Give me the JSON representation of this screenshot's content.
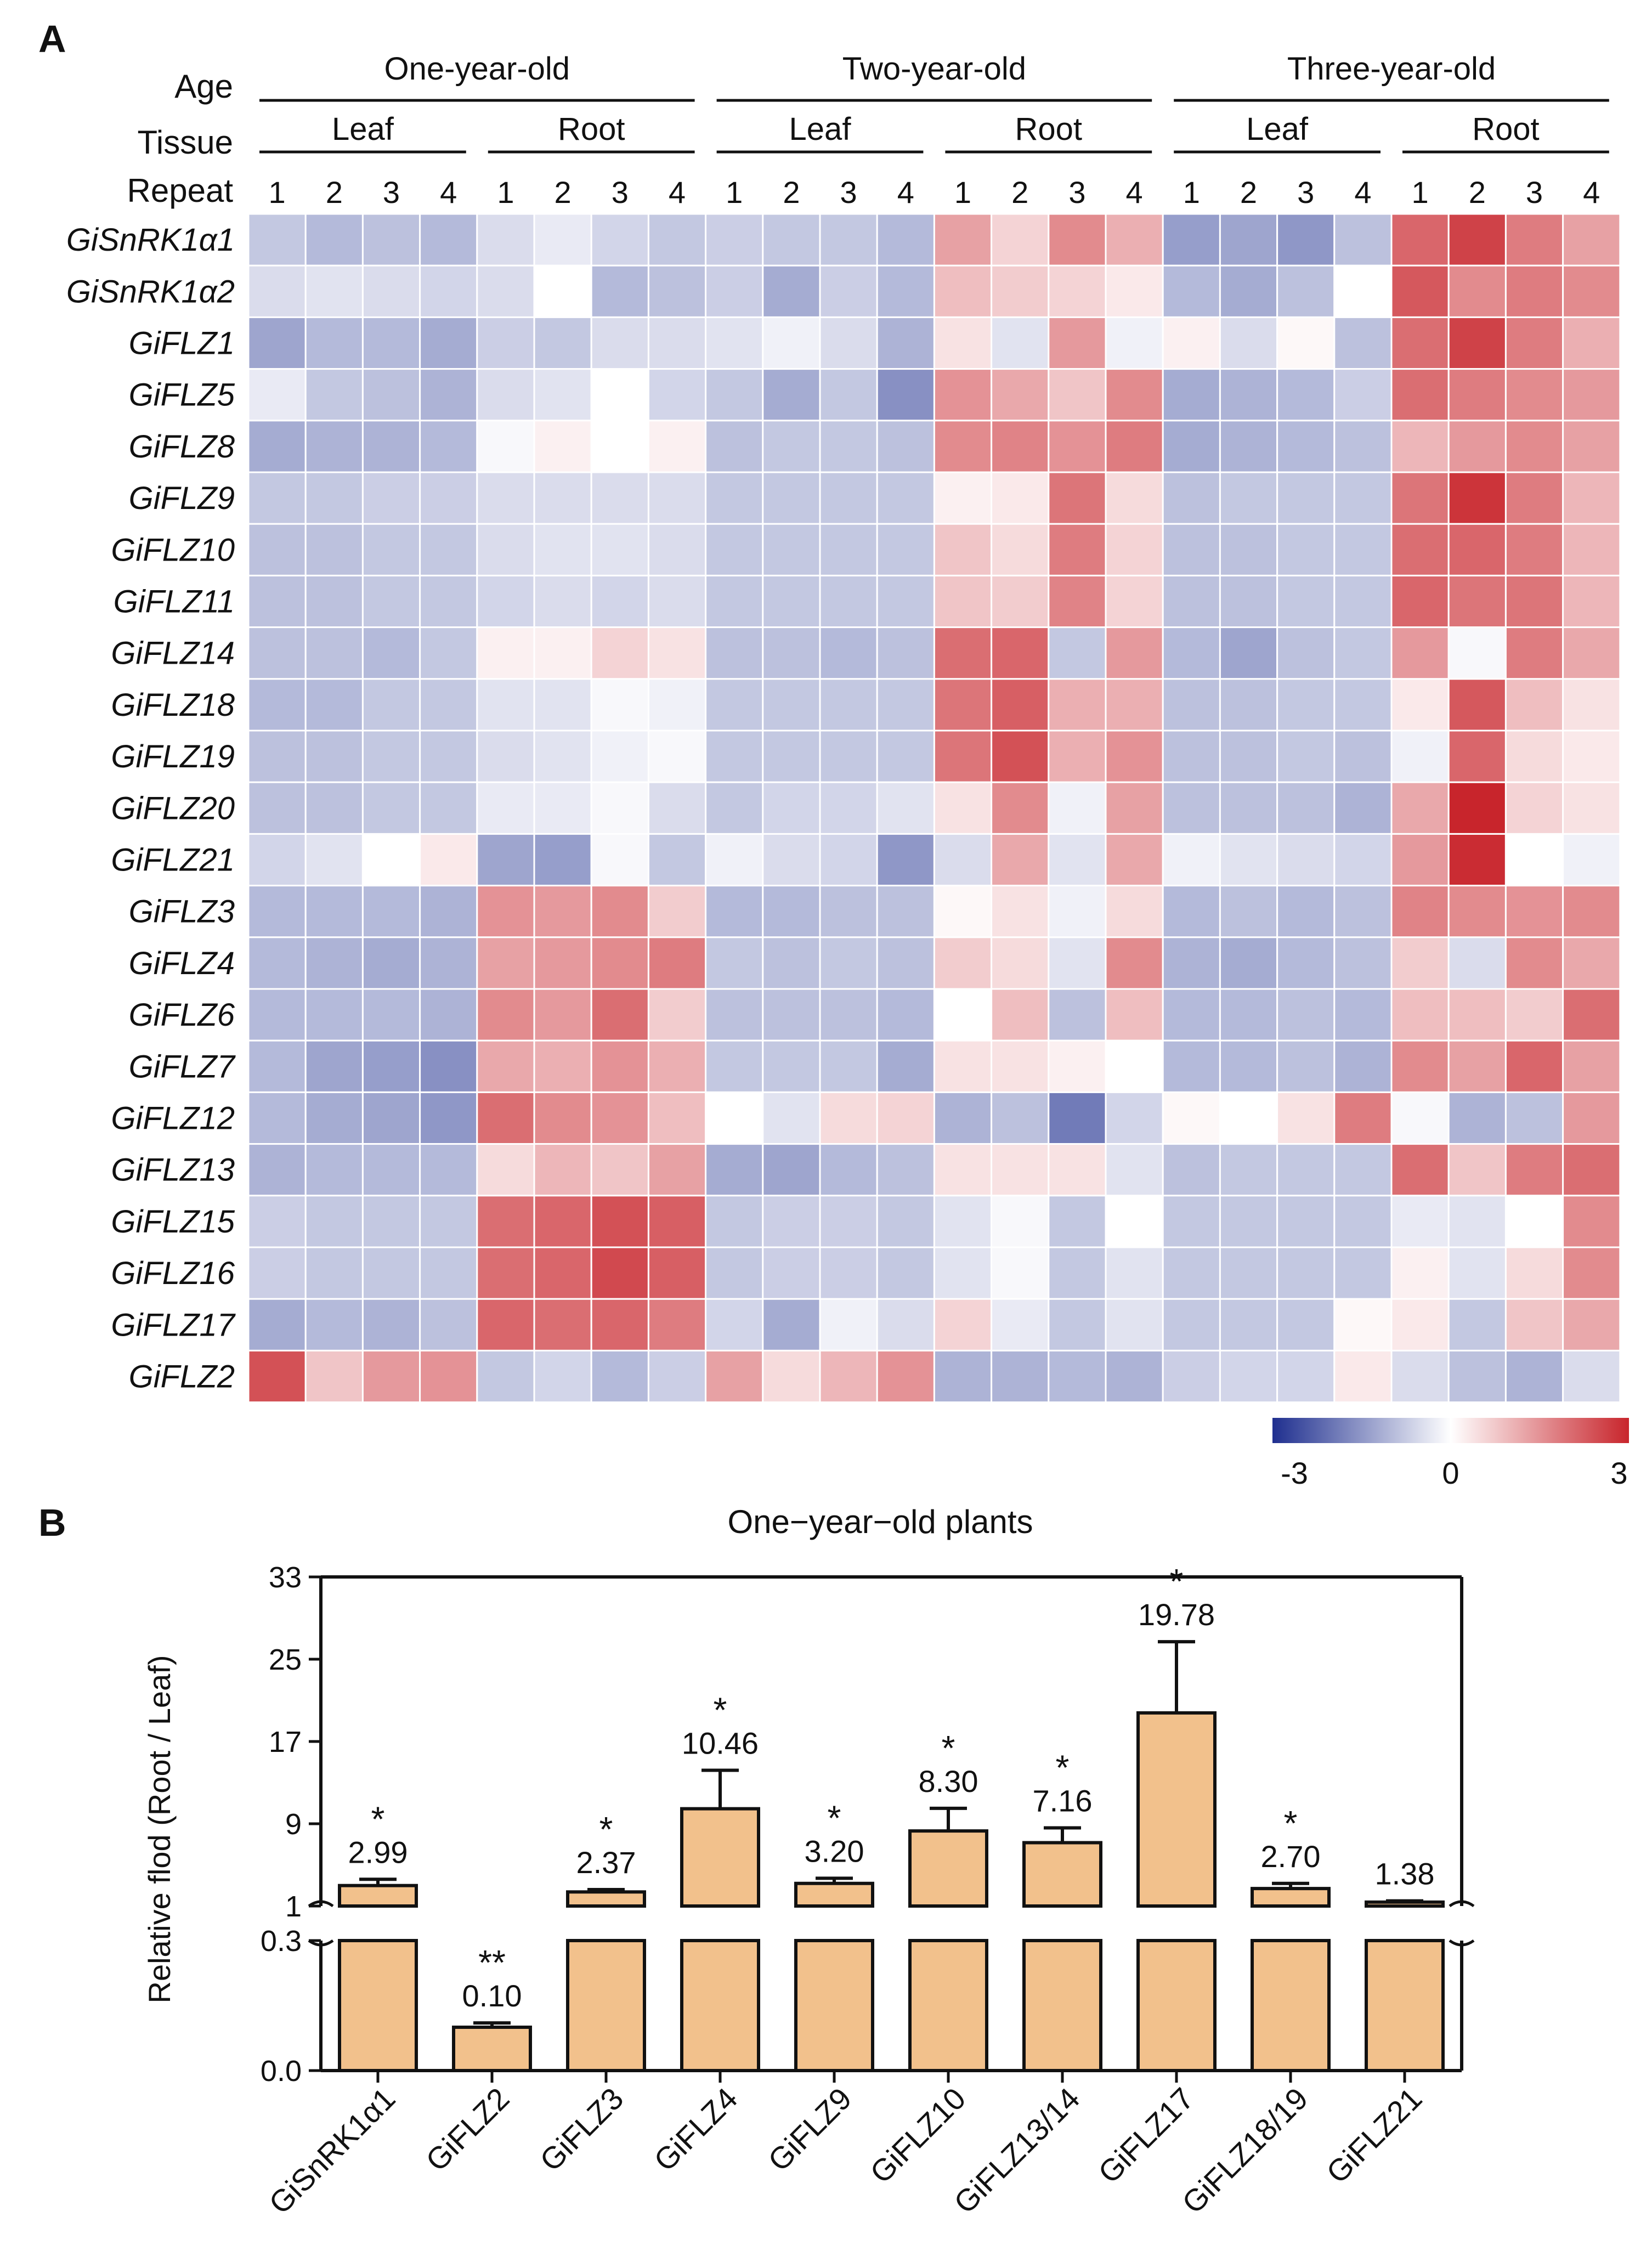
{
  "panel_a_letter": "A",
  "panel_b_letter": "B",
  "heatmap": {
    "row_header_age": "Age",
    "row_header_tissue": "Tissue",
    "row_header_repeat": "Repeat",
    "ages": [
      "One-year-old",
      "Two-year-old",
      "Three-year-old"
    ],
    "tissues": [
      "Leaf",
      "Root",
      "Leaf",
      "Root",
      "Leaf",
      "Root"
    ],
    "repeats": [
      "1",
      "2",
      "3",
      "4",
      "1",
      "2",
      "3",
      "4",
      "1",
      "2",
      "3",
      "4",
      "1",
      "2",
      "3",
      "4",
      "1",
      "2",
      "3",
      "4",
      "1",
      "2",
      "3",
      "4"
    ],
    "genes": [
      "GiSnRK1α1",
      "GiSnRK1α2",
      "GiFLZ1",
      "GiFLZ5",
      "GiFLZ8",
      "GiFLZ9",
      "GiFLZ10",
      "GiFLZ11",
      "GiFLZ14",
      "GiFLZ18",
      "GiFLZ19",
      "GiFLZ20",
      "GiFLZ21",
      "GiFLZ3",
      "GiFLZ4",
      "GiFLZ6",
      "GiFLZ7",
      "GiFLZ12",
      "GiFLZ13",
      "GiFLZ15",
      "GiFLZ16",
      "GiFLZ17",
      "GiFLZ2"
    ],
    "values": [
      [
        -0.8,
        -1.0,
        -0.9,
        -1.0,
        -0.5,
        -0.3,
        -0.6,
        -0.8,
        -0.7,
        -0.8,
        -0.8,
        -1.0,
        1.3,
        0.6,
        1.6,
        1.1,
        -1.4,
        -1.3,
        -1.5,
        -0.9,
        2.1,
        2.6,
        1.8,
        1.3
      ],
      [
        -0.5,
        -0.4,
        -0.5,
        -0.6,
        -0.5,
        0.0,
        -1.0,
        -0.9,
        -0.7,
        -1.2,
        -0.7,
        -1.0,
        0.9,
        0.7,
        0.6,
        0.3,
        -1.0,
        -1.2,
        -0.9,
        0.0,
        2.3,
        1.6,
        1.8,
        1.6
      ],
      [
        -1.3,
        -1.0,
        -1.0,
        -1.2,
        -0.7,
        -0.8,
        -0.5,
        -0.5,
        -0.4,
        -0.2,
        -0.5,
        -1.1,
        0.4,
        -0.4,
        1.4,
        -0.2,
        0.2,
        -0.5,
        0.1,
        -0.9,
        2.0,
        2.6,
        1.8,
        1.1
      ],
      [
        -0.3,
        -0.8,
        -0.9,
        -1.1,
        -0.5,
        -0.4,
        0.0,
        -0.6,
        -0.8,
        -1.2,
        -0.8,
        -1.6,
        1.5,
        1.2,
        0.8,
        1.6,
        -1.2,
        -1.1,
        -1.0,
        -0.7,
        2.0,
        1.8,
        1.6,
        1.4
      ],
      [
        -1.2,
        -1.1,
        -1.1,
        -1.0,
        -0.1,
        0.2,
        0.0,
        0.2,
        -0.9,
        -0.8,
        -0.8,
        -0.9,
        1.6,
        1.7,
        1.5,
        1.8,
        -1.2,
        -1.1,
        -1.0,
        -0.9,
        1.0,
        1.4,
        1.6,
        1.3
      ],
      [
        -0.8,
        -0.8,
        -0.7,
        -0.7,
        -0.5,
        -0.5,
        -0.5,
        -0.5,
        -0.8,
        -0.8,
        -0.8,
        -0.8,
        0.2,
        0.3,
        1.9,
        0.5,
        -0.9,
        -0.8,
        -0.8,
        -0.8,
        1.9,
        2.8,
        1.8,
        1.0
      ],
      [
        -0.9,
        -0.9,
        -0.8,
        -0.8,
        -0.5,
        -0.4,
        -0.4,
        -0.5,
        -0.8,
        -0.8,
        -0.8,
        -0.8,
        0.8,
        0.5,
        1.8,
        0.6,
        -0.9,
        -0.9,
        -0.8,
        -0.8,
        2.0,
        2.1,
        1.8,
        1.0
      ],
      [
        -0.9,
        -0.9,
        -0.8,
        -0.8,
        -0.6,
        -0.5,
        -0.6,
        -0.5,
        -0.8,
        -0.8,
        -0.8,
        -0.8,
        0.8,
        0.7,
        1.7,
        0.6,
        -0.9,
        -0.9,
        -0.8,
        -0.8,
        2.1,
        1.9,
        1.9,
        1.0
      ],
      [
        -0.9,
        -0.9,
        -1.0,
        -0.8,
        0.2,
        0.2,
        0.6,
        0.4,
        -0.9,
        -0.9,
        -1.0,
        -0.9,
        2.0,
        2.1,
        -0.8,
        1.4,
        -1.0,
        -1.3,
        -0.9,
        -0.8,
        1.4,
        -0.1,
        1.8,
        1.2
      ],
      [
        -1.0,
        -1.0,
        -0.8,
        -0.8,
        -0.4,
        -0.4,
        -0.1,
        -0.2,
        -0.8,
        -0.8,
        -0.8,
        -0.8,
        1.9,
        2.2,
        1.1,
        1.1,
        -0.9,
        -0.9,
        -0.8,
        -0.8,
        0.3,
        2.3,
        0.9,
        0.4
      ],
      [
        -0.9,
        -0.9,
        -0.8,
        -0.8,
        -0.5,
        -0.4,
        -0.2,
        -0.1,
        -0.8,
        -0.8,
        -0.8,
        -0.8,
        1.9,
        2.4,
        1.1,
        1.5,
        -0.9,
        -0.9,
        -0.8,
        -0.9,
        -0.2,
        2.1,
        0.5,
        0.3
      ],
      [
        -0.9,
        -0.9,
        -0.8,
        -0.8,
        -0.3,
        -0.3,
        -0.1,
        -0.5,
        -0.8,
        -0.6,
        -0.6,
        -0.4,
        0.4,
        1.6,
        -0.2,
        1.3,
        -0.9,
        -0.9,
        -0.9,
        -1.1,
        1.2,
        3.0,
        0.6,
        0.4
      ],
      [
        -0.6,
        -0.4,
        0.0,
        0.3,
        -1.3,
        -1.4,
        -0.1,
        -0.8,
        -0.2,
        -0.5,
        -0.6,
        -1.5,
        -0.5,
        1.2,
        -0.4,
        1.2,
        -0.2,
        -0.4,
        -0.5,
        -0.6,
        1.4,
        2.9,
        0.0,
        -0.2
      ],
      [
        -1.0,
        -1.0,
        -1.0,
        -1.1,
        1.5,
        1.4,
        1.6,
        0.7,
        -1.0,
        -1.0,
        -0.9,
        -0.9,
        0.1,
        0.4,
        -0.2,
        0.5,
        -1.0,
        -0.9,
        -1.0,
        -0.9,
        1.7,
        1.6,
        1.5,
        1.6
      ],
      [
        -1.0,
        -1.1,
        -1.2,
        -1.1,
        1.3,
        1.4,
        1.6,
        1.8,
        -0.8,
        -0.9,
        -0.8,
        -0.9,
        0.7,
        0.5,
        -0.4,
        1.6,
        -1.1,
        -1.2,
        -1.0,
        -0.9,
        0.7,
        -0.5,
        1.6,
        1.2
      ],
      [
        -1.0,
        -1.0,
        -1.0,
        -1.1,
        1.6,
        1.4,
        2.0,
        0.7,
        -0.9,
        -0.9,
        -0.9,
        -1.0,
        0.0,
        0.9,
        -0.9,
        0.9,
        -1.0,
        -1.0,
        -0.9,
        -1.0,
        0.9,
        0.9,
        0.7,
        2.0
      ],
      [
        -1.0,
        -1.3,
        -1.4,
        -1.6,
        1.2,
        1.1,
        1.5,
        1.1,
        -0.8,
        -0.8,
        -0.8,
        -1.2,
        0.4,
        0.4,
        0.2,
        0.0,
        -1.0,
        -1.0,
        -0.9,
        -1.1,
        1.6,
        1.3,
        2.1,
        1.3
      ],
      [
        -1.0,
        -1.2,
        -1.3,
        -1.5,
        2.0,
        1.6,
        1.5,
        0.9,
        0.0,
        -0.4,
        0.5,
        0.6,
        -1.1,
        -0.9,
        -1.9,
        -0.6,
        0.1,
        0.0,
        0.4,
        1.8,
        -0.1,
        -1.1,
        -0.9,
        1.4
      ],
      [
        -1.1,
        -1.0,
        -1.0,
        -1.0,
        0.5,
        1.0,
        0.8,
        1.3,
        -1.2,
        -1.3,
        -1.0,
        -0.9,
        0.4,
        0.4,
        0.4,
        -0.4,
        -0.9,
        -0.8,
        -0.8,
        -0.8,
        2.0,
        0.8,
        1.8,
        2.0
      ],
      [
        -0.7,
        -0.8,
        -0.8,
        -0.8,
        2.0,
        2.1,
        2.4,
        2.2,
        -0.8,
        -0.7,
        -0.7,
        -0.8,
        -0.4,
        -0.1,
        -0.8,
        0.0,
        -0.8,
        -0.8,
        -0.8,
        -0.8,
        -0.3,
        -0.4,
        0.0,
        1.6
      ],
      [
        -0.7,
        -0.8,
        -0.8,
        -0.8,
        2.0,
        2.1,
        2.5,
        2.2,
        -0.8,
        -0.7,
        -0.7,
        -0.8,
        -0.4,
        -0.1,
        -0.8,
        -0.4,
        -0.8,
        -0.8,
        -0.8,
        -0.8,
        0.2,
        -0.4,
        0.5,
        1.6
      ],
      [
        -1.2,
        -1.0,
        -1.1,
        -0.9,
        2.1,
        2.0,
        2.1,
        1.8,
        -0.6,
        -1.2,
        -0.2,
        -0.5,
        0.6,
        -0.3,
        -0.8,
        -0.4,
        -0.8,
        -0.8,
        -0.8,
        0.1,
        0.3,
        -0.8,
        0.8,
        1.2
      ],
      [
        2.4,
        0.8,
        1.4,
        1.5,
        -0.8,
        -0.6,
        -1.0,
        -0.7,
        1.3,
        0.5,
        1.0,
        1.5,
        -1.1,
        -1.1,
        -1.0,
        -1.1,
        -0.7,
        -0.6,
        -0.6,
        0.3,
        -0.5,
        -0.9,
        -1.1,
        -0.5
      ]
    ]
  },
  "legend": {
    "min_label": "-3",
    "mid_label": "0",
    "max_label": "3",
    "low_color": "#1f2f8f",
    "mid_color": "#ffffff",
    "high_color": "#c8252c"
  },
  "chart_data": {
    "type": "bar",
    "title": "One−year−old plants",
    "ylabel": "Relative flod (Root / Leaf)",
    "xlabel": "",
    "broken_axis": true,
    "lower_segment": {
      "ylim": [
        0,
        0.3
      ],
      "ticks": [
        "0.0",
        "0.3"
      ]
    },
    "upper_segment": {
      "ylim": [
        1,
        33
      ],
      "ticks": [
        "1",
        "9",
        "17",
        "25",
        "33"
      ]
    },
    "categories": [
      "GiSnRK1α1",
      "GiFLZ2",
      "GiFLZ3",
      "GiFLZ4",
      "GiFLZ9",
      "GiFLZ10",
      "GiFLZ13/14",
      "GiFLZ17",
      "GiFLZ18/19",
      "GiFLZ21"
    ],
    "values": [
      2.99,
      0.1,
      2.37,
      10.46,
      3.2,
      8.3,
      7.16,
      19.78,
      2.7,
      1.38
    ],
    "value_labels": [
      "2.99",
      "0.10",
      "2.37",
      "10.46",
      "3.20",
      "8.30",
      "7.16",
      "19.78",
      "2.70",
      "1.38"
    ],
    "error_upper": [
      3.6,
      0.11,
      2.6,
      14.2,
      3.7,
      10.5,
      8.6,
      26.7,
      3.2,
      1.5
    ],
    "significance": [
      "*",
      "**",
      "*",
      "*",
      "*",
      "*",
      "*",
      "*",
      "*",
      ""
    ],
    "bar_color": "#f2c18c"
  }
}
